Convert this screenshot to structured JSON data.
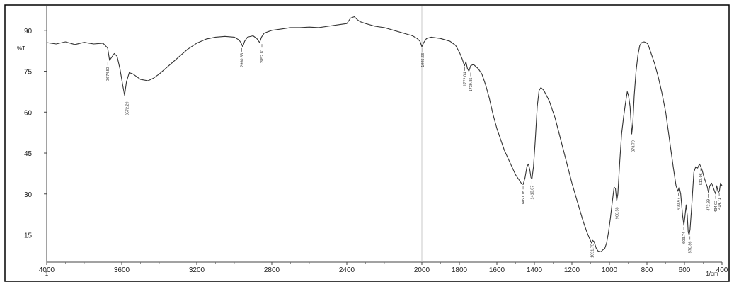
{
  "chart_data": {
    "type": "line",
    "title": "",
    "ylabel": "%T",
    "xlabel": "1/cm",
    "x_axis_sublabel": "1",
    "xlim": [
      4000,
      400
    ],
    "ylim": [
      5,
      98
    ],
    "x_ticks": [
      {
        "value": 4000,
        "label": "4000"
      },
      {
        "value": 3600,
        "label": "3600"
      },
      {
        "value": 3200,
        "label": "3200"
      },
      {
        "value": 2800,
        "label": "2800"
      },
      {
        "value": 2400,
        "label": "2400"
      },
      {
        "value": 2000,
        "label": "2000"
      },
      {
        "value": 1800,
        "label": "1800"
      },
      {
        "value": 1600,
        "label": "1600"
      },
      {
        "value": 1400,
        "label": "1400"
      },
      {
        "value": 1200,
        "label": "1200"
      },
      {
        "value": 1000,
        "label": "1000"
      },
      {
        "value": 800,
        "label": "800"
      },
      {
        "value": 600,
        "label": "600"
      },
      {
        "value": 400,
        "label": "400"
      }
    ],
    "y_ticks": [
      {
        "value": 90,
        "label": "90"
      },
      {
        "value": 75,
        "label": "75"
      },
      {
        "value": 60,
        "label": "60"
      },
      {
        "value": 45,
        "label": "45"
      },
      {
        "value": 30,
        "label": "30"
      },
      {
        "value": 15,
        "label": "15"
      }
    ],
    "grid": false,
    "series": [
      {
        "color": "#333333",
        "points": [
          [
            4000,
            85.5
          ],
          [
            3950,
            85.0
          ],
          [
            3900,
            85.8
          ],
          [
            3850,
            84.8
          ],
          [
            3800,
            85.6
          ],
          [
            3750,
            85.0
          ],
          [
            3700,
            85.3
          ],
          [
            3675,
            83.5
          ],
          [
            3665,
            79.0
          ],
          [
            3655,
            80.0
          ],
          [
            3640,
            81.5
          ],
          [
            3625,
            80.5
          ],
          [
            3610,
            76.0
          ],
          [
            3595,
            70.0
          ],
          [
            3585,
            66.2
          ],
          [
            3575,
            71.0
          ],
          [
            3560,
            74.5
          ],
          [
            3540,
            74.0
          ],
          [
            3500,
            72.0
          ],
          [
            3460,
            71.5
          ],
          [
            3430,
            72.5
          ],
          [
            3400,
            74.0
          ],
          [
            3350,
            77.0
          ],
          [
            3300,
            80.0
          ],
          [
            3250,
            83.0
          ],
          [
            3200,
            85.3
          ],
          [
            3150,
            86.8
          ],
          [
            3100,
            87.5
          ],
          [
            3050,
            87.8
          ],
          [
            3000,
            87.5
          ],
          [
            2975,
            86.5
          ],
          [
            2965,
            85.5
          ],
          [
            2955,
            84.0
          ],
          [
            2945,
            86.0
          ],
          [
            2930,
            87.5
          ],
          [
            2900,
            88.0
          ],
          [
            2880,
            87.0
          ],
          [
            2865,
            85.5
          ],
          [
            2855,
            87.5
          ],
          [
            2840,
            89.0
          ],
          [
            2800,
            90.0
          ],
          [
            2750,
            90.5
          ],
          [
            2700,
            91.0
          ],
          [
            2650,
            91.0
          ],
          [
            2600,
            91.2
          ],
          [
            2550,
            91.0
          ],
          [
            2500,
            91.5
          ],
          [
            2450,
            92.0
          ],
          [
            2400,
            92.5
          ],
          [
            2380,
            94.5
          ],
          [
            2360,
            95.0
          ],
          [
            2345,
            94.0
          ],
          [
            2330,
            93.2
          ],
          [
            2300,
            92.5
          ],
          [
            2250,
            91.5
          ],
          [
            2200,
            91.0
          ],
          [
            2150,
            90.0
          ],
          [
            2100,
            89.0
          ],
          [
            2050,
            88.0
          ],
          [
            2025,
            87.0
          ],
          [
            2010,
            86.0
          ],
          [
            2000,
            84.0
          ],
          [
            1990,
            85.5
          ],
          [
            1975,
            87.0
          ],
          [
            1950,
            87.5
          ],
          [
            1900,
            87.0
          ],
          [
            1850,
            86.0
          ],
          [
            1820,
            84.5
          ],
          [
            1800,
            82.0
          ],
          [
            1785,
            79.5
          ],
          [
            1773,
            77.0
          ],
          [
            1765,
            78.5
          ],
          [
            1757,
            76.0
          ],
          [
            1749,
            75.0
          ],
          [
            1740,
            77.0
          ],
          [
            1725,
            77.5
          ],
          [
            1700,
            76.0
          ],
          [
            1680,
            74.0
          ],
          [
            1660,
            70.0
          ],
          [
            1640,
            65.0
          ],
          [
            1620,
            59.0
          ],
          [
            1600,
            54.0
          ],
          [
            1580,
            50.0
          ],
          [
            1560,
            46.0
          ],
          [
            1540,
            43.0
          ],
          [
            1520,
            40.0
          ],
          [
            1500,
            37.0
          ],
          [
            1480,
            35.0
          ],
          [
            1470,
            34.0
          ],
          [
            1460,
            33.5
          ],
          [
            1450,
            36.0
          ],
          [
            1440,
            40.0
          ],
          [
            1432,
            41.0
          ],
          [
            1425,
            39.0
          ],
          [
            1418,
            36.0
          ],
          [
            1413,
            35.5
          ],
          [
            1405,
            40.0
          ],
          [
            1395,
            50.0
          ],
          [
            1385,
            62.0
          ],
          [
            1375,
            68.0
          ],
          [
            1365,
            69.0
          ],
          [
            1350,
            68.0
          ],
          [
            1320,
            64.0
          ],
          [
            1290,
            58.0
          ],
          [
            1260,
            50.0
          ],
          [
            1230,
            42.0
          ],
          [
            1200,
            34.0
          ],
          [
            1170,
            27.0
          ],
          [
            1140,
            20.0
          ],
          [
            1120,
            16.0
          ],
          [
            1105,
            13.5
          ],
          [
            1095,
            12.0
          ],
          [
            1090,
            13.0
          ],
          [
            1082,
            12.5
          ],
          [
            1070,
            10.0
          ],
          [
            1060,
            9.0
          ],
          [
            1045,
            8.8
          ],
          [
            1035,
            9.5
          ],
          [
            1025,
            10.0
          ],
          [
            1015,
            12.0
          ],
          [
            1005,
            16.0
          ],
          [
            995,
            21.0
          ],
          [
            985,
            27.0
          ],
          [
            975,
            32.5
          ],
          [
            968,
            32.0
          ],
          [
            961,
            27.5
          ],
          [
            955,
            30.0
          ],
          [
            945,
            42.0
          ],
          [
            935,
            52.0
          ],
          [
            925,
            58.0
          ],
          [
            915,
            63.0
          ],
          [
            905,
            67.5
          ],
          [
            898,
            66.0
          ],
          [
            890,
            62.0
          ],
          [
            881,
            52.0
          ],
          [
            875,
            56.0
          ],
          [
            868,
            66.0
          ],
          [
            858,
            75.0
          ],
          [
            848,
            81.0
          ],
          [
            838,
            84.5
          ],
          [
            828,
            85.5
          ],
          [
            815,
            85.8
          ],
          [
            805,
            85.5
          ],
          [
            795,
            85.0
          ],
          [
            780,
            82.0
          ],
          [
            760,
            78.0
          ],
          [
            740,
            73.0
          ],
          [
            720,
            67.0
          ],
          [
            700,
            60.0
          ],
          [
            680,
            50.0
          ],
          [
            660,
            40.0
          ],
          [
            645,
            33.0
          ],
          [
            635,
            31.0
          ],
          [
            628,
            32.5
          ],
          [
            620,
            30.0
          ],
          [
            610,
            22.0
          ],
          [
            603,
            18.5
          ],
          [
            597,
            22.0
          ],
          [
            591,
            26.0
          ],
          [
            585,
            22.0
          ],
          [
            580,
            16.0
          ],
          [
            575,
            15.0
          ],
          [
            570,
            17.0
          ],
          [
            562,
            25.0
          ],
          [
            550,
            38.0
          ],
          [
            540,
            40.0
          ],
          [
            530,
            39.5
          ],
          [
            520,
            41.0
          ],
          [
            513,
            40.0
          ],
          [
            505,
            38.5
          ],
          [
            495,
            36.0
          ],
          [
            485,
            34.0
          ],
          [
            478,
            32.5
          ],
          [
            472,
            30.5
          ],
          [
            465,
            33.0
          ],
          [
            455,
            34.0
          ],
          [
            445,
            32.0
          ],
          [
            434,
            30.0
          ],
          [
            428,
            33.0
          ],
          [
            420,
            30.5
          ],
          [
            414,
            31.0
          ],
          [
            408,
            34.0
          ],
          [
            400,
            33.0
          ]
        ]
      }
    ],
    "peak_labels": [
      {
        "x": 3674.53,
        "y": 79.0,
        "label": "3674.53"
      },
      {
        "x": 3572.29,
        "y": 66.2,
        "label": "3572.29"
      },
      {
        "x": 2960.83,
        "y": 84.0,
        "label": "2960.83"
      },
      {
        "x": 2852.81,
        "y": 85.5,
        "label": "2852.81"
      },
      {
        "x": 1995.63,
        "y": 84.0,
        "label": "1995.63"
      },
      {
        "x": 1772.04,
        "y": 77.0,
        "label": "1772.04"
      },
      {
        "x": 1739.85,
        "y": 75.0,
        "label": "1739.85"
      },
      {
        "x": 1460.18,
        "y": 33.5,
        "label": "1460.18"
      },
      {
        "x": 1413.87,
        "y": 35.5,
        "label": "1413.87"
      },
      {
        "x": 1091.75,
        "y": 12.0,
        "label": "1091.75"
      },
      {
        "x": 960.58,
        "y": 27.5,
        "label": "960.58"
      },
      {
        "x": 873.79,
        "y": 52.0,
        "label": "873.79"
      },
      {
        "x": 632.67,
        "y": 31.0,
        "label": "632.67"
      },
      {
        "x": 603.74,
        "y": 18.5,
        "label": "603.74"
      },
      {
        "x": 570.86,
        "y": 15.0,
        "label": "570.86"
      },
      {
        "x": 513.06,
        "y": 40.0,
        "label": "513.06"
      },
      {
        "x": 472.89,
        "y": 30.5,
        "label": "472.89"
      },
      {
        "x": 434.02,
        "y": 30.0,
        "label": "434.02"
      },
      {
        "x": 414.71,
        "y": 31.0,
        "label": "414.71"
      }
    ]
  }
}
